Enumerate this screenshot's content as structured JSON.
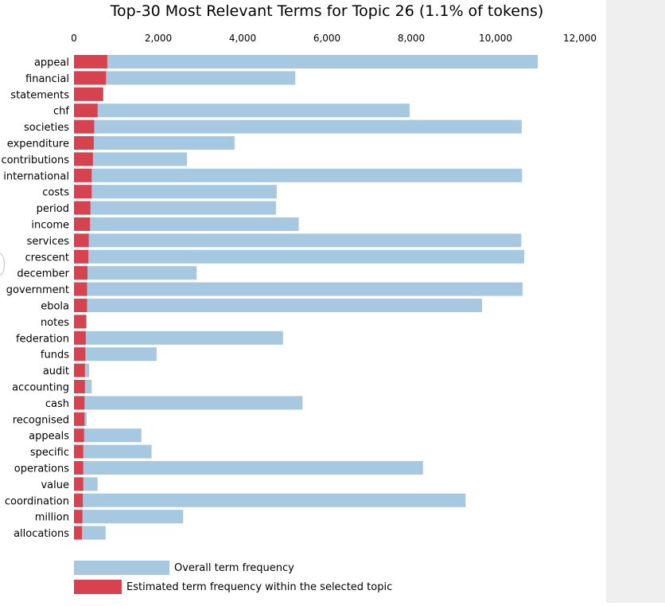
{
  "colors": {
    "overall": "#a6c8e0",
    "topic": "#d6434e",
    "axis_text": "#000000"
  },
  "chart_data": {
    "type": "bar",
    "orientation": "horizontal",
    "title": "Top-30 Most Relevant Terms for Topic 26 (1.1% of tokens)",
    "xlim": [
      0,
      12000
    ],
    "xticks": [
      0,
      2000,
      4000,
      6000,
      8000,
      10000,
      12000
    ],
    "xtick_labels": [
      "0",
      "2,000",
      "4,000",
      "6,000",
      "8,000",
      "10,000",
      "12,000"
    ],
    "axis_position": "top",
    "grid": false,
    "legend_position": "bottom-left",
    "categories": [
      "appeal",
      "financial",
      "statements",
      "chf",
      "societies",
      "expenditure",
      "contributions",
      "international",
      "costs",
      "period",
      "income",
      "services",
      "crescent",
      "december",
      "government",
      "ebola",
      "notes",
      "federation",
      "funds",
      "audit",
      "accounting",
      "cash",
      "recognised",
      "appeals",
      "specific",
      "operations",
      "value",
      "coordination",
      "million",
      "allocations"
    ],
    "series": [
      {
        "name": "Overall term frequency",
        "values": [
          11000,
          5250,
          700,
          7960,
          10620,
          3810,
          2680,
          10630,
          4810,
          4790,
          5330,
          10610,
          10680,
          2910,
          10640,
          9680,
          300,
          4960,
          1960,
          360,
          420,
          5420,
          300,
          1600,
          1840,
          8280,
          560,
          9290,
          2590,
          750
        ]
      },
      {
        "name": "Estimated term frequency within the selected topic",
        "values": [
          790,
          760,
          690,
          560,
          480,
          470,
          450,
          420,
          420,
          390,
          380,
          350,
          340,
          320,
          310,
          310,
          290,
          280,
          270,
          260,
          260,
          250,
          250,
          240,
          220,
          220,
          220,
          210,
          200,
          190
        ]
      }
    ]
  }
}
